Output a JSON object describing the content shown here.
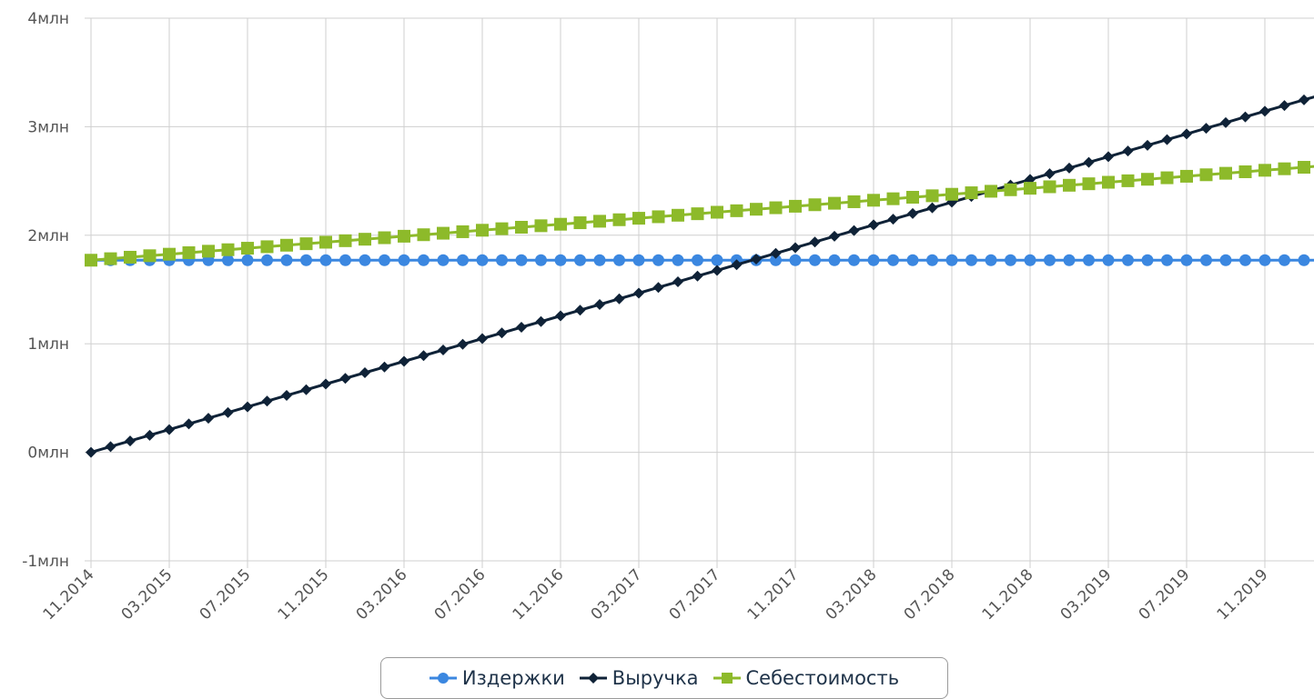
{
  "chart_data": {
    "type": "line",
    "x_start": "11.2014",
    "x_end": "02.2020",
    "x_tick_labels": [
      "11.2014",
      "03.2015",
      "07.2015",
      "11.2015",
      "03.2016",
      "07.2016",
      "11.2016",
      "03.2017",
      "07.2017",
      "11.2017",
      "03.2018",
      "07.2018",
      "11.2018",
      "03.2019",
      "07.2019",
      "11.2019"
    ],
    "y_tick_labels": [
      "-1млн",
      "0млн",
      "1млн",
      "2млн",
      "3млн",
      "4млн"
    ],
    "ylim": [
      -1000000,
      4000000
    ],
    "grid": true,
    "legend_position": "bottom-center",
    "series": [
      {
        "name": "Издержки",
        "color": "#3b87e0",
        "marker": "circle",
        "start_value": 1770000,
        "end_value": 1770000
      },
      {
        "name": "Выручка",
        "color": "#0f2237",
        "marker": "diamond",
        "start_value": 0,
        "end_value": 3300000
      },
      {
        "name": "Себестоимость",
        "color": "#8dba2a",
        "marker": "square",
        "start_value": 1770000,
        "end_value": 2640000
      }
    ]
  }
}
